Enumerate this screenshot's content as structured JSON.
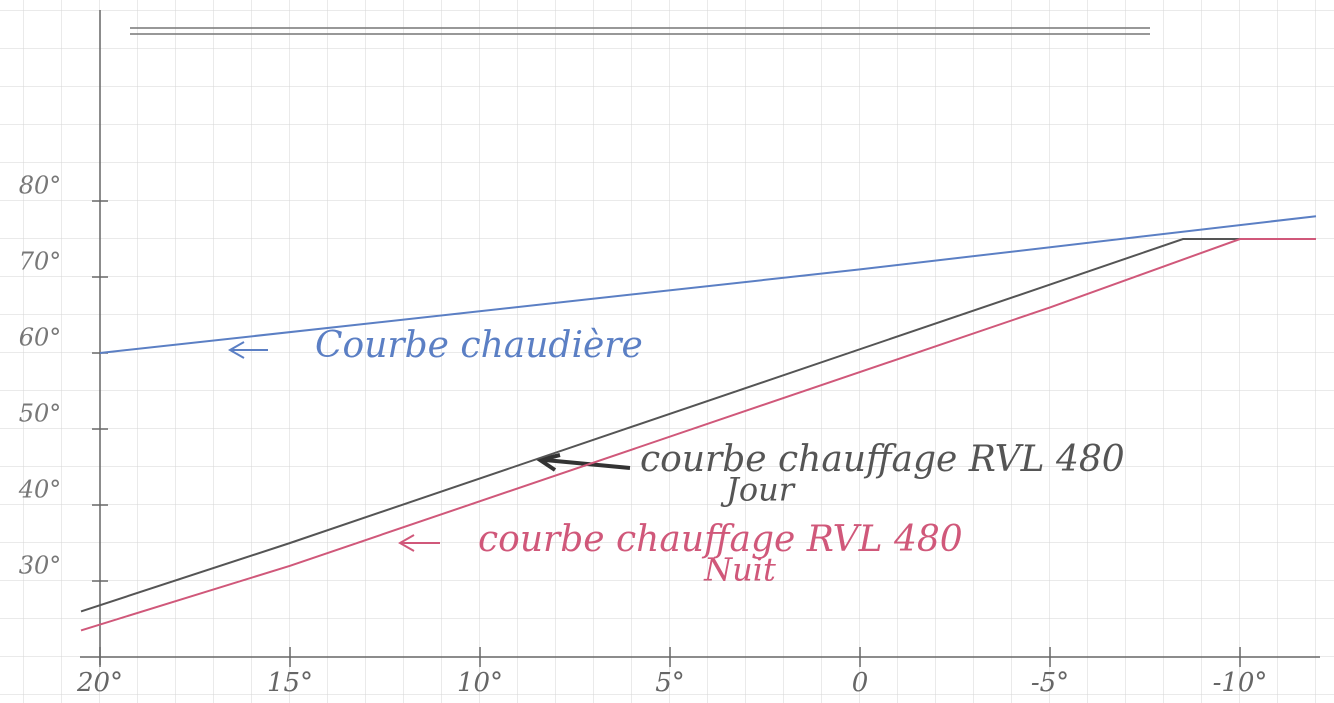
{
  "chart_data": {
    "type": "line",
    "xlim": [
      20,
      -12
    ],
    "ylim": [
      20,
      100
    ],
    "xticks": [
      {
        "value": 20,
        "label": "20°"
      },
      {
        "value": 15,
        "label": "15°"
      },
      {
        "value": 10,
        "label": "10°"
      },
      {
        "value": 5,
        "label": "5°"
      },
      {
        "value": 0,
        "label": "0"
      },
      {
        "value": -5,
        "label": "-5°"
      },
      {
        "value": -10,
        "label": "-10°"
      }
    ],
    "yticks": [
      {
        "value": 30,
        "label": "30°"
      },
      {
        "value": 40,
        "label": "40°"
      },
      {
        "value": 50,
        "label": "50°"
      },
      {
        "value": 60,
        "label": "60°"
      },
      {
        "value": 70,
        "label": "70°"
      },
      {
        "value": 80,
        "label": "80°"
      }
    ],
    "series": [
      {
        "name": "Courbe chaudière",
        "color": "#5b7fc4",
        "x": [
          20,
          0,
          -12
        ],
        "values": [
          60,
          71,
          78
        ]
      },
      {
        "name": "courbe chauffage RVL 480",
        "sublabel": "Jour",
        "color": "#555555",
        "x": [
          20.5,
          15,
          -5,
          -8.5,
          -12
        ],
        "values": [
          26,
          35,
          69,
          75,
          75
        ]
      },
      {
        "name": "courbe chauffage RVL 480",
        "sublabel": "Nuit",
        "color": "#d0587a",
        "x": [
          20.5,
          15,
          -5,
          -10,
          -12
        ],
        "values": [
          23.5,
          32,
          66,
          75,
          75
        ]
      }
    ]
  }
}
